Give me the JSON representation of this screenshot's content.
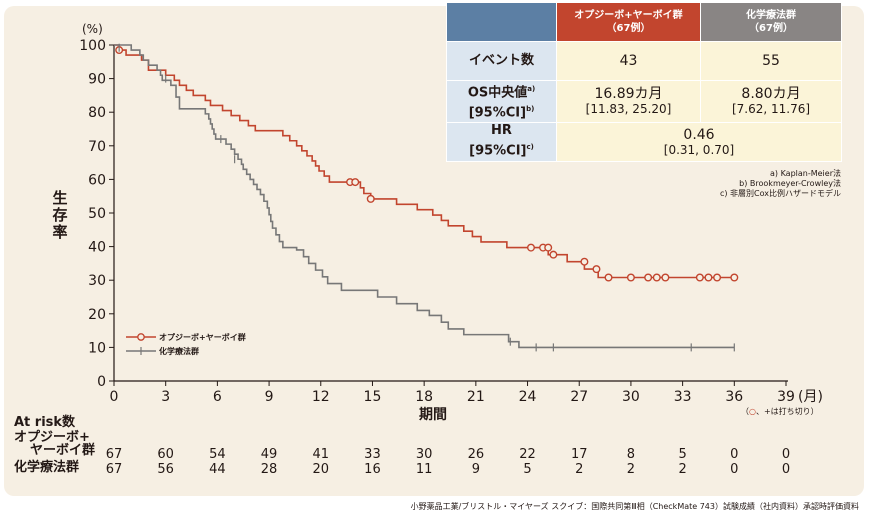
{
  "summary_table": {
    "header": {
      "group1": "オプジーボ+ヤーボイ群",
      "group1_n": "（67例）",
      "group2": "化学療法群",
      "group2_n": "（67例）"
    },
    "rows": [
      {
        "label": "イベント数",
        "label_sup": "",
        "label2": "",
        "g1": "43",
        "g1_sub": "",
        "g2": "55",
        "g2_sub": ""
      },
      {
        "label": "OS中央値",
        "label_sup": "a)",
        "label2": "[95%CI]",
        "label2_sup": "b)",
        "g1": "16.89カ月",
        "g1_sub": "[11.83, 25.20]",
        "g2": "8.80カ月",
        "g2_sub": "[7.62, 11.76]"
      },
      {
        "label": "HR",
        "label_sup": "",
        "label2": "[95%CI]",
        "label2_sup": "c)",
        "merged": "0.46",
        "merged_sub": "[0.31, 0.70]"
      }
    ]
  },
  "notes": [
    "a) Kaplan-Meier法",
    "b) Brookmeyer-Crowley法",
    "c) 非層別Cox比例ハザードモデル"
  ],
  "censor_note": {
    "prefix": "（",
    "o": "○",
    "suffix": "、+は打ち切り）"
  },
  "source": "小野薬品工業/ブリストル・マイヤーズ スクイブ：国際共同第Ⅲ相（CheckMate 743）試験成績（社内資料）承認時評価資料",
  "y_axis_label": [
    "生",
    "存",
    "率"
  ],
  "at_risk": {
    "title": "At risk数",
    "group1_label": [
      "オプジーボ+",
      "ヤーボイ群"
    ],
    "group2_label": "化学療法群",
    "group1": [
      67,
      60,
      54,
      49,
      41,
      33,
      30,
      26,
      22,
      17,
      8,
      5,
      0,
      0
    ],
    "group2": [
      67,
      56,
      44,
      28,
      20,
      16,
      11,
      9,
      5,
      2,
      2,
      2,
      0,
      0
    ]
  },
  "chart_data": {
    "type": "line",
    "subtype": "kaplan-meier",
    "xlabel": "期間",
    "xunit": "(月)",
    "yunit": "(%)",
    "xlim": [
      0,
      39
    ],
    "ylim": [
      0,
      100
    ],
    "xticks": [
      0,
      3,
      6,
      9,
      12,
      15,
      18,
      21,
      24,
      27,
      30,
      33,
      36,
      39
    ],
    "yticks": [
      0,
      10,
      20,
      30,
      40,
      50,
      60,
      70,
      80,
      90,
      100
    ],
    "legend": "bottom-left",
    "series": [
      {
        "name": "オプジーボ+ヤーボイ群",
        "color": "#c2452e",
        "marker": "circle",
        "steps": [
          [
            0,
            100
          ],
          [
            0.3,
            98.5
          ],
          [
            0.7,
            97.0
          ],
          [
            1.6,
            95.5
          ],
          [
            2.0,
            92.5
          ],
          [
            3.0,
            91.0
          ],
          [
            3.5,
            89.5
          ],
          [
            3.8,
            88.0
          ],
          [
            4.2,
            86.5
          ],
          [
            4.6,
            85.0
          ],
          [
            5.3,
            83.5
          ],
          [
            5.6,
            82.0
          ],
          [
            6.3,
            80.5
          ],
          [
            6.8,
            79.0
          ],
          [
            7.3,
            77.5
          ],
          [
            7.8,
            76.0
          ],
          [
            8.2,
            74.5
          ],
          [
            9.8,
            73.0
          ],
          [
            10.2,
            71.5
          ],
          [
            10.6,
            70.0
          ],
          [
            10.9,
            68.5
          ],
          [
            11.2,
            67.0
          ],
          [
            11.5,
            65.5
          ],
          [
            11.7,
            64.0
          ],
          [
            11.9,
            62.5
          ],
          [
            12.2,
            61.0
          ],
          [
            12.5,
            59.2
          ],
          [
            14.3,
            57.5
          ],
          [
            14.5,
            55.8
          ],
          [
            14.9,
            54.2
          ],
          [
            15.3,
            54.2
          ],
          [
            16.4,
            52.6
          ],
          [
            17.6,
            51.0
          ],
          [
            18.5,
            49.4
          ],
          [
            19.0,
            47.8
          ],
          [
            19.4,
            46.2
          ],
          [
            20.3,
            44.6
          ],
          [
            20.8,
            43.0
          ],
          [
            21.3,
            41.4
          ],
          [
            22.8,
            39.7
          ],
          [
            25.2,
            37.6
          ],
          [
            26.3,
            35.5
          ],
          [
            27.3,
            33.3
          ],
          [
            28.1,
            30.8
          ],
          [
            36.0,
            30.8
          ]
        ],
        "censored": [
          [
            0.3,
            98.5
          ],
          [
            13.7,
            59.2
          ],
          [
            14.0,
            59.2
          ],
          [
            14.9,
            54.2
          ],
          [
            24.2,
            39.7
          ],
          [
            24.9,
            39.7
          ],
          [
            25.2,
            39.7
          ],
          [
            25.5,
            37.6
          ],
          [
            27.3,
            35.5
          ],
          [
            28.0,
            33.3
          ],
          [
            28.7,
            30.8
          ],
          [
            30.0,
            30.8
          ],
          [
            31.0,
            30.8
          ],
          [
            31.5,
            30.8
          ],
          [
            32.0,
            30.8
          ],
          [
            34.0,
            30.8
          ],
          [
            34.5,
            30.8
          ],
          [
            35.0,
            30.8
          ],
          [
            36.0,
            30.8
          ]
        ]
      },
      {
        "name": "化学療法群",
        "color": "#777777",
        "marker": "plus",
        "steps": [
          [
            0,
            100
          ],
          [
            1.0,
            98.5
          ],
          [
            1.5,
            97.0
          ],
          [
            1.7,
            95.5
          ],
          [
            2.0,
            94.0
          ],
          [
            2.5,
            92.5
          ],
          [
            2.7,
            91.0
          ],
          [
            2.8,
            89.5
          ],
          [
            3.3,
            88.0
          ],
          [
            3.6,
            84.5
          ],
          [
            3.8,
            81.0
          ],
          [
            5.3,
            79.5
          ],
          [
            5.5,
            78.0
          ],
          [
            5.6,
            76.5
          ],
          [
            5.7,
            75.0
          ],
          [
            5.8,
            73.5
          ],
          [
            5.9,
            72.0
          ],
          [
            6.5,
            70.5
          ],
          [
            6.8,
            69.0
          ],
          [
            7.0,
            67.5
          ],
          [
            7.2,
            66.0
          ],
          [
            7.4,
            64.5
          ],
          [
            7.5,
            63.0
          ],
          [
            7.7,
            61.5
          ],
          [
            7.9,
            60.0
          ],
          [
            8.1,
            58.5
          ],
          [
            8.3,
            57.0
          ],
          [
            8.5,
            55.5
          ],
          [
            8.7,
            53.5
          ],
          [
            8.9,
            51.5
          ],
          [
            9.0,
            49.5
          ],
          [
            9.1,
            47.5
          ],
          [
            9.2,
            45.5
          ],
          [
            9.4,
            43.5
          ],
          [
            9.6,
            41.5
          ],
          [
            9.8,
            39.7
          ],
          [
            10.6,
            39.0
          ],
          [
            11.0,
            37.0
          ],
          [
            11.3,
            35.0
          ],
          [
            11.7,
            33.0
          ],
          [
            12.1,
            31.0
          ],
          [
            12.4,
            29.0
          ],
          [
            13.2,
            27.0
          ],
          [
            15.3,
            25.0
          ],
          [
            16.4,
            23.0
          ],
          [
            17.6,
            21.0
          ],
          [
            18.3,
            19.5
          ],
          [
            19.0,
            17.5
          ],
          [
            19.4,
            15.5
          ],
          [
            20.3,
            13.8
          ],
          [
            22.9,
            11.7
          ],
          [
            23.5,
            10.0
          ],
          [
            36.0,
            10.0
          ]
        ],
        "censored": [
          [
            0.3,
            99.2
          ],
          [
            3.0,
            90.0
          ],
          [
            6.2,
            72.0
          ],
          [
            7.0,
            66.0
          ],
          [
            23.0,
            11.7
          ],
          [
            24.5,
            10.0
          ],
          [
            25.5,
            10.0
          ],
          [
            33.5,
            10.0
          ],
          [
            36.0,
            10.0
          ]
        ]
      }
    ]
  }
}
